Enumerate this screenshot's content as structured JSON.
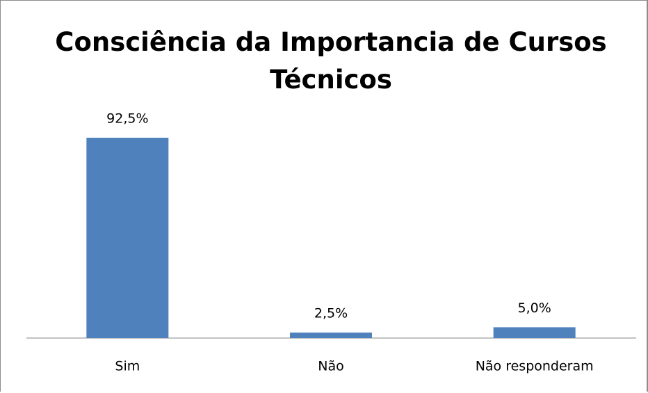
{
  "chart_data": {
    "type": "bar",
    "title": "Consciência da Importancia de Cursos Técnicos",
    "categories": [
      "Sim",
      "Não",
      "Não responderam"
    ],
    "values": [
      92.5,
      2.5,
      5.0
    ],
    "value_labels": [
      "92,5%",
      "2,5%",
      "5,0%"
    ],
    "color": "#4f81bd"
  }
}
